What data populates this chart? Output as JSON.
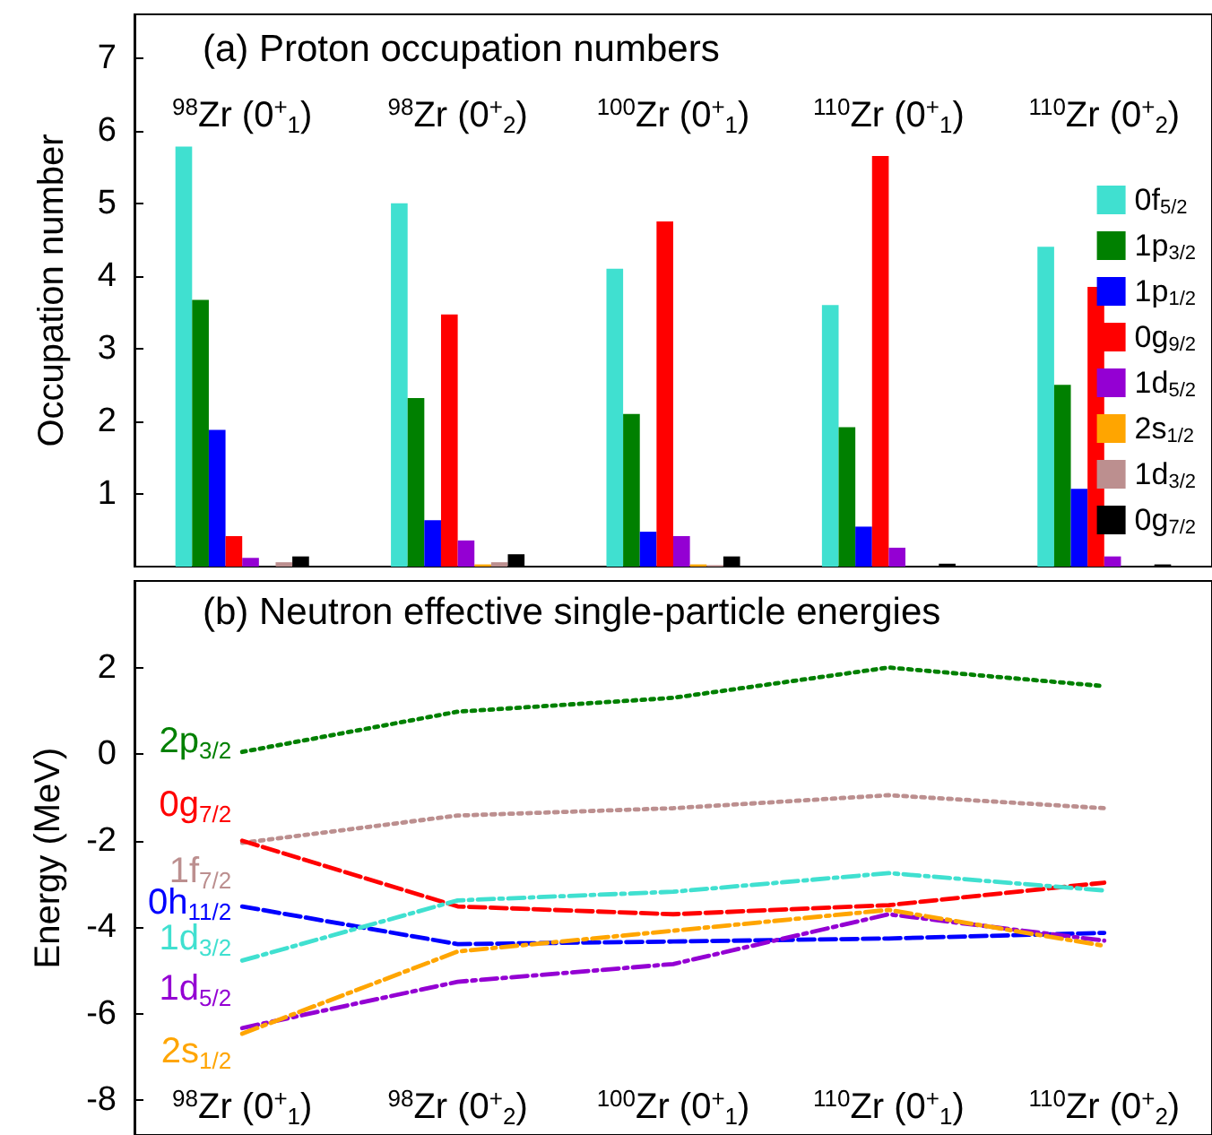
{
  "chart_data": [
    {
      "type": "bar",
      "title": "(a) Proton occupation numbers",
      "ylabel": "Occupation number",
      "categories": [
        "$^{98}$Zr (0$^{+}$$_{1}$)",
        "$^{98}$Zr (0$^{+}$$_{2}$)",
        "$^{100}$Zr (0$^{+}$$_{1}$)",
        "$^{110}$Zr (0$^{+}$$_{1}$)",
        "$^{110}$Zr (0$^{+}$$_{2}$)"
      ],
      "series": [
        {
          "name": "0f$_{5/2}$",
          "color": "#40e0d0",
          "values": [
            5.78,
            5.0,
            4.1,
            3.6,
            4.4
          ]
        },
        {
          "name": "1p$_{3/2}$",
          "color": "#008000",
          "values": [
            3.67,
            2.32,
            2.1,
            1.92,
            2.5
          ]
        },
        {
          "name": "1p$_{1/2}$",
          "color": "#0000ff",
          "values": [
            1.88,
            0.64,
            0.48,
            0.55,
            1.07
          ]
        },
        {
          "name": "0g$_{9/2}$",
          "color": "#ff0000",
          "values": [
            0.42,
            3.47,
            4.75,
            5.65,
            3.85
          ]
        },
        {
          "name": "1d$_{5/2}$",
          "color": "#9400d3",
          "values": [
            0.12,
            0.36,
            0.42,
            0.26,
            0.14
          ]
        },
        {
          "name": "2s$_{1/2}$",
          "color": "#ffa500",
          "values": [
            0,
            0.03,
            0.03,
            0,
            0
          ]
        },
        {
          "name": "1d$_{3/2}$",
          "color": "#bc8f8f",
          "values": [
            0.06,
            0.06,
            0.02,
            0,
            0
          ]
        },
        {
          "name": "0g$_{7/2}$",
          "color": "#000000",
          "values": [
            0.14,
            0.17,
            0.14,
            0.04,
            0.03
          ]
        }
      ],
      "ylim": [
        0,
        7.6
      ],
      "yticks": [
        1,
        2,
        3,
        4,
        5,
        6,
        7
      ],
      "grid": false,
      "legend": "right"
    },
    {
      "type": "line",
      "title": "(b) Neutron effective single-particle energies",
      "ylabel": "Energy (MeV)",
      "categories": [
        "$^{98}$Zr (0$^{+}$$_{1}$)",
        "$^{98}$Zr (0$^{+}$$_{2}$)",
        "$^{100}$Zr (0$^{+}$$_{1}$)",
        "$^{110}$Zr (0$^{+}$$_{1}$)",
        "$^{110}$Zr (0$^{+}$$_{2}$)"
      ],
      "series": [
        {
          "name": "2p$_{3/2}$",
          "color": "#008000",
          "line_style": "dotted",
          "values": [
            0.05,
            0.98,
            1.3,
            2.0,
            1.57
          ]
        },
        {
          "name": "1f$_{7/2}$",
          "color": "#bc8f8f",
          "line_style": "dotted",
          "values": [
            -2.05,
            -1.42,
            -1.25,
            -0.95,
            -1.25
          ]
        },
        {
          "name": "0g$_{7/2}$",
          "color": "#ff0000",
          "line_style": "dashed",
          "values": [
            -2.0,
            -3.52,
            -3.7,
            -3.49,
            -2.97
          ]
        },
        {
          "name": "0h$_{11/2}$",
          "color": "#0000ff",
          "line_style": "dashed",
          "values": [
            -3.52,
            -4.39,
            -4.33,
            -4.26,
            -4.13
          ]
        },
        {
          "name": "1d$_{3/2}$",
          "color": "#40e0d0",
          "line_style": "dashdot",
          "values": [
            -4.77,
            -3.38,
            -3.18,
            -2.75,
            -3.15
          ]
        },
        {
          "name": "1d$_{5/2}$",
          "color": "#9400d3",
          "line_style": "dashdot",
          "values": [
            -6.33,
            -5.26,
            -4.85,
            -3.7,
            -4.31
          ]
        },
        {
          "name": "2s$_{1/2}$",
          "color": "#ffa500",
          "line_style": "dashdot",
          "values": [
            -6.46,
            -4.56,
            null,
            -3.6,
            -4.43
          ]
        }
      ],
      "ylim": [
        -8.8,
        4
      ],
      "yticks": [
        -8,
        -6,
        -4,
        -2,
        0,
        2
      ],
      "grid": false,
      "legend": "left"
    }
  ]
}
